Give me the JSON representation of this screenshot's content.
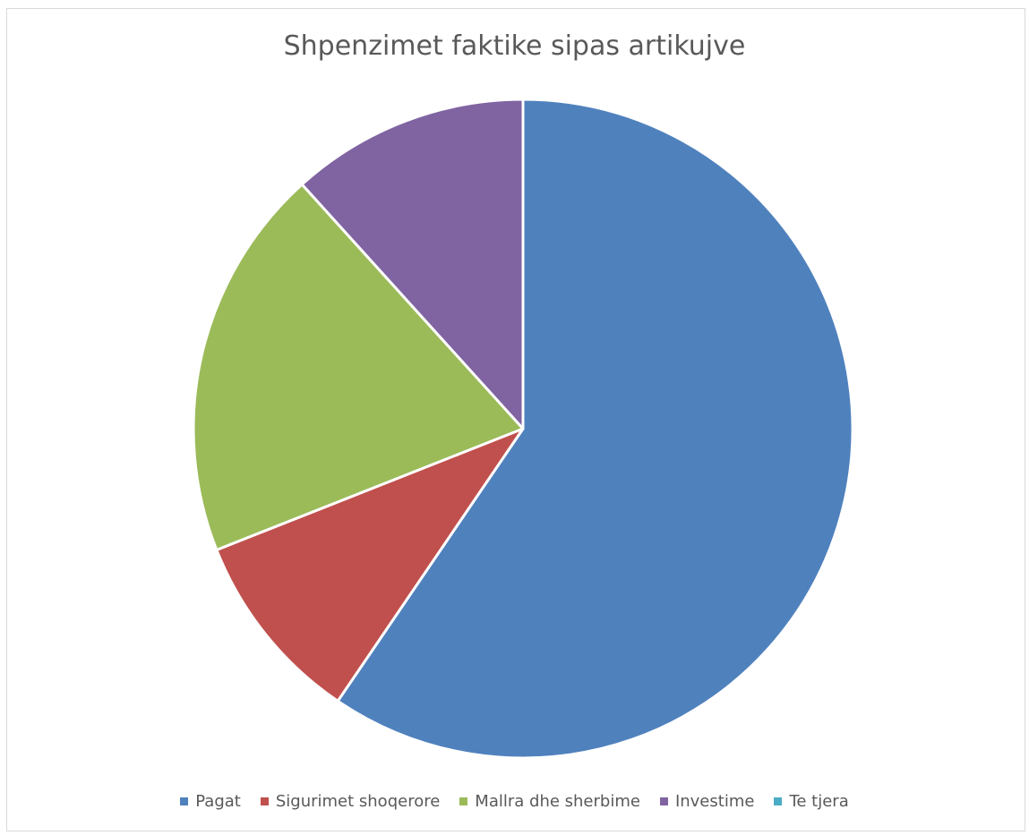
{
  "chart_data": {
    "type": "pie",
    "title": "Shpenzimet faktike sipas artikujve",
    "categories": [
      "Pagat",
      "Sigurimet shoqerore",
      "Mallra dhe sherbime",
      "Investime",
      "Te tjera"
    ],
    "values": [
      59.5,
      9.5,
      19.3,
      11.7,
      0
    ],
    "unit": "%",
    "colors": [
      "#4f81bd",
      "#c0504d",
      "#9bbb59",
      "#8064a2",
      "#4bacc6"
    ],
    "start_angle": "12 o'clock",
    "direction": "clockwise",
    "legend_position": "bottom"
  }
}
